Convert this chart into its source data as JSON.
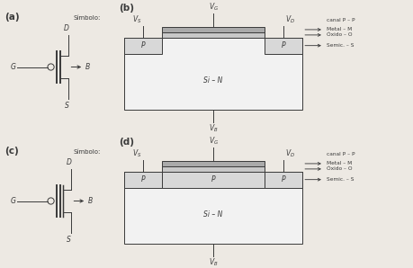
{
  "bg_color": "#ede9e3",
  "line_color": "#3a3a3a",
  "panel_labels": [
    "(a)",
    "(b)",
    "(c)",
    "(d)"
  ],
  "symbol_text": "Símbolo:",
  "legend_items": [
    "canal P – P",
    "Metal – M",
    "Óxido – O",
    "Semic. – S"
  ],
  "si_n_label": "Si – N",
  "p_label": "P",
  "metal_color": "#aaaaaa",
  "oxide_color": "#c8c8c8",
  "p_region_color": "#d8d8d8",
  "substrate_color": "#f2f2f2"
}
